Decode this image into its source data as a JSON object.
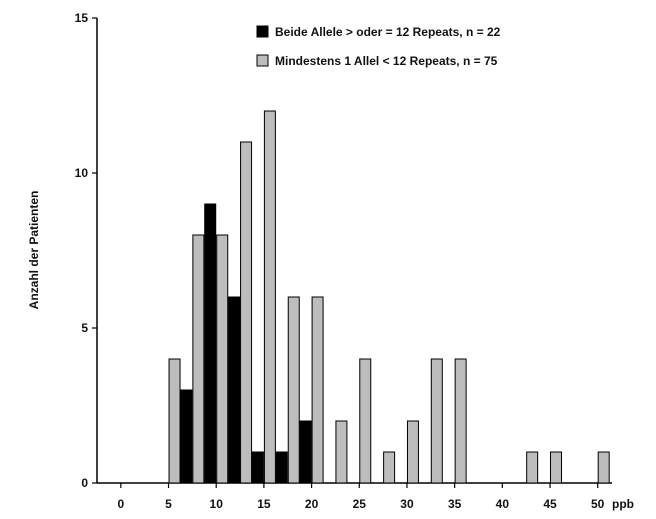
{
  "chart_data": {
    "type": "bar",
    "title": "",
    "xlabel": "",
    "ylabel": "Anzahl der Patienten",
    "x_unit_label": "ppb",
    "xlim": [
      -2.5,
      51.5
    ],
    "ylim": [
      0,
      15
    ],
    "x_ticks": [
      "0",
      "5",
      "10",
      "15",
      "20",
      "25",
      "30",
      "35",
      "40",
      "45",
      "50"
    ],
    "y_ticks": [
      "0",
      "5",
      "10",
      "15"
    ],
    "grid": false,
    "legend_position": "top-right",
    "x": [
      2.5,
      5,
      7.5,
      10,
      12.5,
      15,
      17.5,
      20,
      22.5,
      25,
      27.5,
      30,
      32.5,
      35,
      37.5,
      40,
      42.5,
      45,
      47.5,
      50
    ],
    "series": [
      {
        "name": "Beide Allele > oder = 12 Repeats, n = 22",
        "color": "#000000",
        "values": [
          0,
          0,
          3,
          9,
          6,
          1,
          1,
          2,
          0,
          0,
          0,
          0,
          0,
          0,
          0,
          0,
          0,
          0,
          0,
          0
        ]
      },
      {
        "name": "Mindestens 1 Allel < 12 Repeats, n = 75",
        "color": "#bdbdbd",
        "values": [
          0,
          4,
          8,
          8,
          11,
          12,
          6,
          6,
          2,
          4,
          1,
          2,
          4,
          4,
          0,
          0,
          1,
          1,
          0,
          1
        ]
      }
    ]
  }
}
